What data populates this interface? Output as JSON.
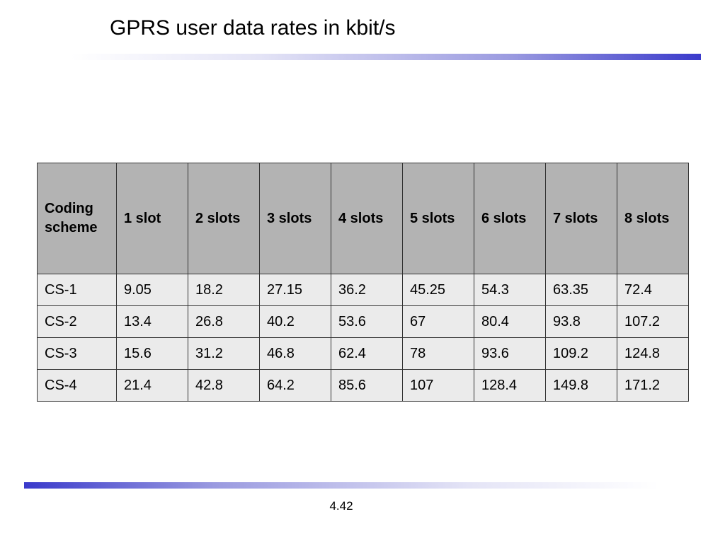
{
  "slide": {
    "title": "GPRS user data rates in kbit/s",
    "page_number": "4.42",
    "accent_color": "#3a3acb"
  },
  "table": {
    "headers": [
      "Coding scheme",
      "1 slot",
      "2 slots",
      "3 slots",
      "4 slots",
      "5 slots",
      "6 slots",
      "7 slots",
      "8 slots"
    ],
    "rows": [
      [
        "CS-1",
        "9.05",
        "18.2",
        "27.15",
        "36.2",
        "45.25",
        "54.3",
        "63.35",
        "72.4"
      ],
      [
        "CS-2",
        "13.4",
        "26.8",
        "40.2",
        "53.6",
        "67",
        "80.4",
        "93.8",
        "107.2"
      ],
      [
        "CS-3",
        "15.6",
        "31.2",
        "46.8",
        "62.4",
        "78",
        "93.6",
        "109.2",
        "124.8"
      ],
      [
        "CS-4",
        "21.4",
        "42.8",
        "64.2",
        "85.6",
        "107",
        "128.4",
        "149.8",
        "171.2"
      ]
    ],
    "header_bg": "#b3b3b3",
    "cell_bg": "#ebebeb"
  }
}
